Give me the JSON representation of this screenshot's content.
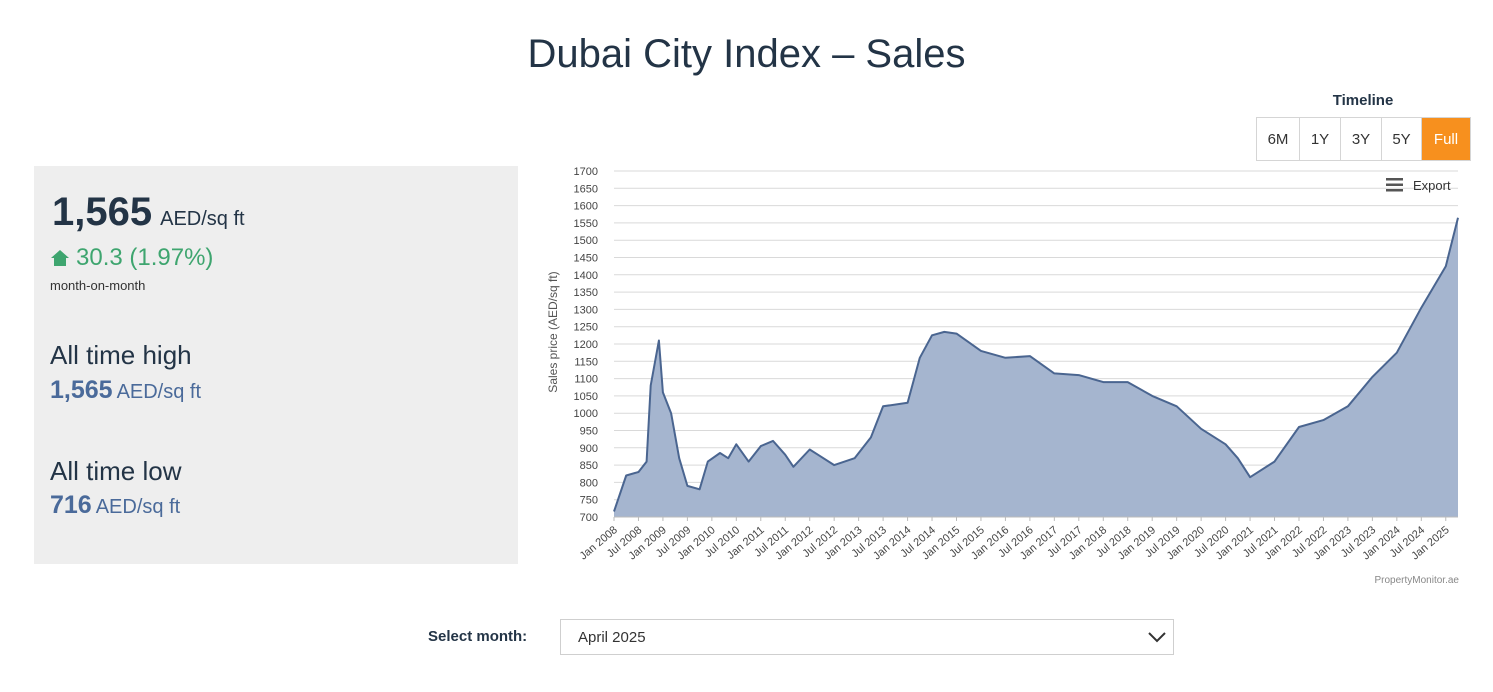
{
  "page": {
    "title": "Dubai City Index – Sales"
  },
  "stats": {
    "price": "1,565",
    "unit": "AED/sq ft",
    "change": "30.3 (1.97%)",
    "change_period": "month-on-month",
    "all_time_high_label": "All time high",
    "all_time_high_value": "1,565",
    "all_time_low_label": "All time low",
    "all_time_low_value": "716",
    "change_color": "#3ea56f"
  },
  "timeline": {
    "title": "Timeline",
    "options": [
      "6M",
      "1Y",
      "3Y",
      "5Y",
      "Full"
    ],
    "active": "Full",
    "active_color": "#f7901e"
  },
  "export_label": "Export",
  "credit": "PropertyMonitor.ae",
  "select": {
    "label": "Select month:",
    "value": "April 2025"
  },
  "chart_data": {
    "type": "area",
    "title": "",
    "ylabel": "Sales price (AED/sq ft)",
    "xlabel": "",
    "ylim": [
      700,
      1700
    ],
    "yticks": [
      700,
      750,
      800,
      850,
      900,
      950,
      1000,
      1050,
      1100,
      1150,
      1200,
      1250,
      1300,
      1350,
      1400,
      1450,
      1500,
      1550,
      1600,
      1650,
      1700
    ],
    "xlim": [
      "Jan 2008",
      "Apr 2025"
    ],
    "xticks": [
      "Jan 2008",
      "Jul 2008",
      "Jan 2009",
      "Jul 2009",
      "Jan 2010",
      "Jul 2010",
      "Jan 2011",
      "Jul 2011",
      "Jan 2012",
      "Jul 2012",
      "Jan 2013",
      "Jul 2013",
      "Jan 2014",
      "Jul 2014",
      "Jan 2015",
      "Jul 2015",
      "Jan 2016",
      "Jul 2016",
      "Jan 2017",
      "Jul 2017",
      "Jan 2018",
      "Jul 2018",
      "Jan 2019",
      "Jul 2019",
      "Jan 2020",
      "Jul 2020",
      "Jan 2021",
      "Jul 2021",
      "Jan 2022",
      "Jul 2022",
      "Jan 2023",
      "Jul 2023",
      "Jan 2024",
      "Jul 2024",
      "Jan 2025"
    ],
    "grid": true,
    "fill_color": "#a5b5cf",
    "line_color": "#4a6590",
    "series": [
      {
        "x": [
          "Jan 2008",
          "Apr 2008",
          "Jul 2008",
          "Sep 2008",
          "Oct 2008",
          "Dec 2008",
          "Jan 2009",
          "Mar 2009",
          "May 2009",
          "Jul 2009",
          "Oct 2009",
          "Dec 2009",
          "Mar 2010",
          "May 2010",
          "Jul 2010",
          "Oct 2010",
          "Jan 2011",
          "Apr 2011",
          "Jul 2011",
          "Sep 2011",
          "Jan 2012",
          "Mar 2012",
          "Jul 2012",
          "Dec 2012",
          "Apr 2013",
          "Jul 2013",
          "Jan 2014",
          "Apr 2014",
          "Jul 2014",
          "Oct 2014",
          "Jan 2015",
          "Jul 2015",
          "Jan 2016",
          "Jul 2016",
          "Jan 2017",
          "Jul 2017",
          "Jan 2018",
          "Jul 2018",
          "Jan 2019",
          "Jul 2019",
          "Jan 2020",
          "Jul 2020",
          "Oct 2020",
          "Jan 2021",
          "Jul 2021",
          "Jan 2022",
          "Jul 2022",
          "Jan 2023",
          "Jul 2023",
          "Jan 2024",
          "Jul 2024",
          "Jan 2025",
          "Apr 2025"
        ],
        "y": [
          716,
          820,
          830,
          860,
          1080,
          1210,
          1060,
          1000,
          870,
          790,
          780,
          860,
          885,
          870,
          910,
          860,
          905,
          920,
          880,
          845,
          895,
          880,
          850,
          870,
          930,
          1020,
          1030,
          1160,
          1225,
          1235,
          1230,
          1180,
          1160,
          1165,
          1115,
          1110,
          1090,
          1090,
          1050,
          1020,
          955,
          910,
          870,
          815,
          860,
          960,
          980,
          1020,
          1105,
          1175,
          1305,
          1425,
          1565
        ]
      }
    ]
  }
}
